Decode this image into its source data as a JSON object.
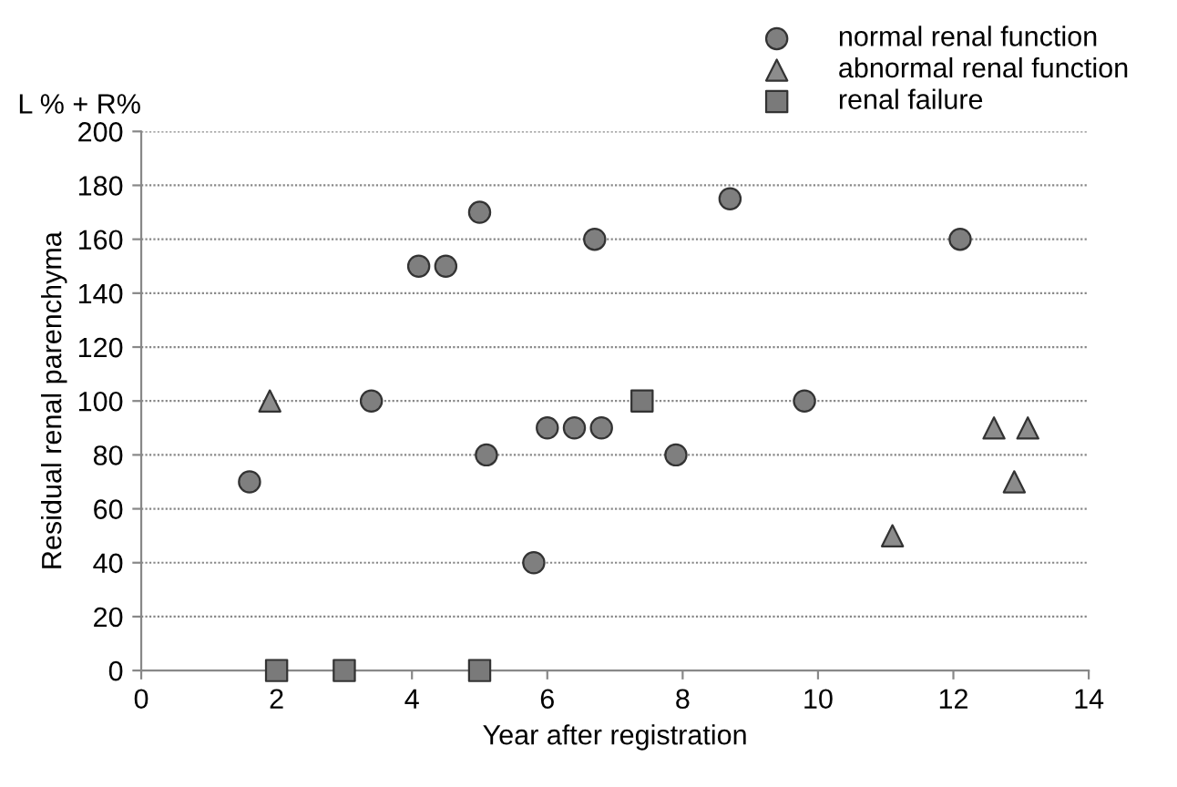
{
  "chart_data": {
    "type": "scatter",
    "xlabel": "Year after registration",
    "ylabel": "Residual renal parenchyma",
    "annotations": [
      "L % + R%"
    ],
    "xlim": [
      0,
      14
    ],
    "xticks": [
      0,
      2,
      4,
      6,
      8,
      10,
      12,
      14
    ],
    "ylim": [
      0,
      200
    ],
    "yticks": [
      0,
      20,
      40,
      60,
      80,
      100,
      120,
      140,
      160,
      180,
      200
    ],
    "grid": "y",
    "legend": "top right",
    "series": [
      {
        "name": "normal renal function",
        "color": "#7f7f7f",
        "marker": "circle",
        "x": [
          1.6,
          3.4,
          4.1,
          4.5,
          5.0,
          5.1,
          5.8,
          6.0,
          6.4,
          6.8,
          6.7,
          7.9,
          8.7,
          9.8,
          12.1
        ],
        "values": [
          70,
          100,
          150,
          150,
          170,
          80,
          40,
          90,
          90,
          90,
          160,
          80,
          175,
          100,
          160
        ]
      },
      {
        "name": "abnormal renal function",
        "color": "#8c8c8c",
        "marker": "triangle",
        "x": [
          1.9,
          11.1,
          12.6,
          12.9,
          13.1
        ],
        "values": [
          100,
          50,
          90,
          70,
          90
        ]
      },
      {
        "name": "renal failure",
        "color": "#7a7a7a",
        "marker": "square",
        "x": [
          2.0,
          3.0,
          5.0,
          7.4
        ],
        "values": [
          0,
          0,
          0,
          100
        ]
      }
    ]
  }
}
